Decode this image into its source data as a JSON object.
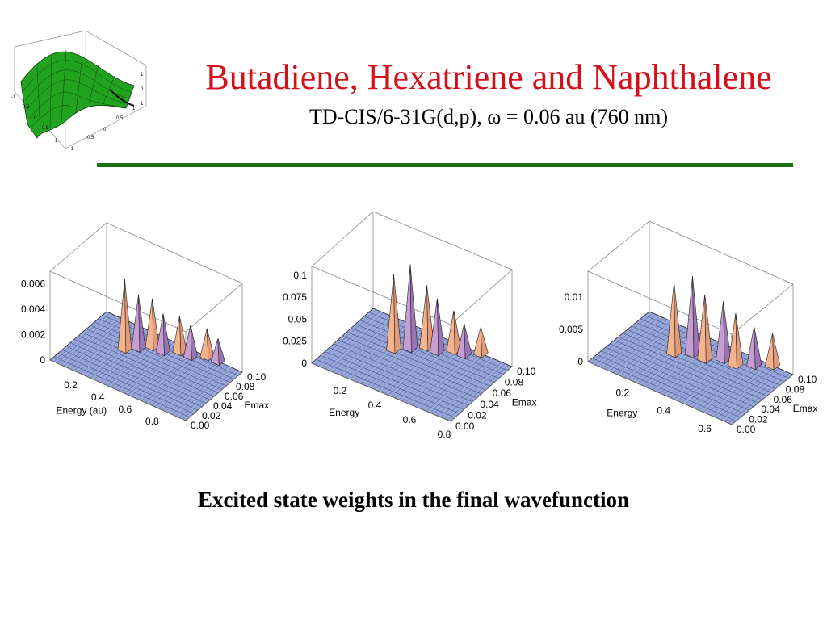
{
  "slide": {
    "title": "Butadiene, Hexatriene and Naphthalene",
    "subtitle": "TD-CIS/6-31G(d,p), ω = 0.06 au (760 nm)",
    "caption": "Excited state weights in the final wavefunction",
    "accent_title_color": "#d4111b",
    "rule_color": "#1b6e12"
  },
  "logo": {
    "description_icon": "green-surface-plot-icon",
    "left_axis_ticks": [
      "-1",
      "-0.5",
      "0",
      "0.5",
      "1"
    ],
    "bottom_axis_ticks": [
      "-1",
      "-0.5",
      "0",
      "0.5",
      "1"
    ],
    "vertical_axis_ticks": [
      "1",
      "0",
      "1"
    ],
    "surface_color": "#22a31f"
  },
  "chart_data": [
    {
      "type": "surface3d",
      "xlabel": "Energy (au)",
      "ylabel": "Emax",
      "zlabel": "",
      "x_ticks": [
        "0.2",
        "0.4",
        "0.6",
        "0.8"
      ],
      "y_ticks": [
        "0.00",
        "0.02",
        "0.04",
        "0.06",
        "0.08",
        "0.10"
      ],
      "z_ticks": [
        "0",
        "0.002",
        "0.004",
        "0.006"
      ],
      "xlim": [
        0.0,
        1.0
      ],
      "ylim": [
        0.0,
        0.1
      ],
      "zlim": [
        0.0,
        0.007
      ],
      "peaks": [
        {
          "energy": 0.3,
          "emax": 0.06,
          "height": 0.0055
        },
        {
          "energy": 0.36,
          "emax": 0.07,
          "height": 0.0042
        },
        {
          "energy": 0.42,
          "emax": 0.08,
          "height": 0.0038
        },
        {
          "energy": 0.5,
          "emax": 0.08,
          "height": 0.003
        },
        {
          "energy": 0.58,
          "emax": 0.09,
          "height": 0.0028
        },
        {
          "energy": 0.66,
          "emax": 0.09,
          "height": 0.0025
        },
        {
          "energy": 0.74,
          "emax": 0.1,
          "height": 0.0022
        },
        {
          "energy": 0.82,
          "emax": 0.1,
          "height": 0.0018
        }
      ]
    },
    {
      "type": "surface3d",
      "xlabel": "Energy",
      "ylabel": "Emax",
      "zlabel": "",
      "x_ticks": [
        "0.2",
        "0.4",
        "0.6",
        "0.8"
      ],
      "y_ticks": [
        "0.00",
        "0.02",
        "0.04",
        "0.06",
        "0.08",
        "0.10"
      ],
      "z_ticks": [
        "0",
        "0.025",
        "0.05",
        "0.075",
        "0.1"
      ],
      "xlim": [
        0.0,
        0.8
      ],
      "ylim": [
        0.0,
        0.1
      ],
      "zlim": [
        0.0,
        0.11
      ],
      "peaks": [
        {
          "energy": 0.26,
          "emax": 0.06,
          "height": 0.085
        },
        {
          "energy": 0.32,
          "emax": 0.07,
          "height": 0.095
        },
        {
          "energy": 0.38,
          "emax": 0.08,
          "height": 0.07
        },
        {
          "energy": 0.44,
          "emax": 0.08,
          "height": 0.06
        },
        {
          "energy": 0.5,
          "emax": 0.09,
          "height": 0.045
        },
        {
          "energy": 0.56,
          "emax": 0.09,
          "height": 0.035
        },
        {
          "energy": 0.62,
          "emax": 0.1,
          "height": 0.03
        }
      ]
    },
    {
      "type": "surface3d",
      "xlabel": "Energy",
      "ylabel": "Emax",
      "zlabel": "",
      "x_ticks": [
        "0.2",
        "0.4",
        "0.6"
      ],
      "y_ticks": [
        "0.00",
        "0.02",
        "0.04",
        "0.06",
        "0.08",
        "0.10"
      ],
      "z_ticks": [
        "0",
        "0.005",
        "0.01"
      ],
      "xlim": [
        0.0,
        0.7
      ],
      "ylim": [
        0.0,
        0.1
      ],
      "zlim": [
        0.0,
        0.014
      ],
      "peaks": [
        {
          "energy": 0.24,
          "emax": 0.06,
          "height": 0.011
        },
        {
          "energy": 0.3,
          "emax": 0.07,
          "height": 0.012
        },
        {
          "energy": 0.36,
          "emax": 0.07,
          "height": 0.01
        },
        {
          "energy": 0.42,
          "emax": 0.08,
          "height": 0.009
        },
        {
          "energy": 0.48,
          "emax": 0.08,
          "height": 0.008
        },
        {
          "energy": 0.54,
          "emax": 0.09,
          "height": 0.006
        },
        {
          "energy": 0.6,
          "emax": 0.1,
          "height": 0.005
        }
      ]
    }
  ]
}
